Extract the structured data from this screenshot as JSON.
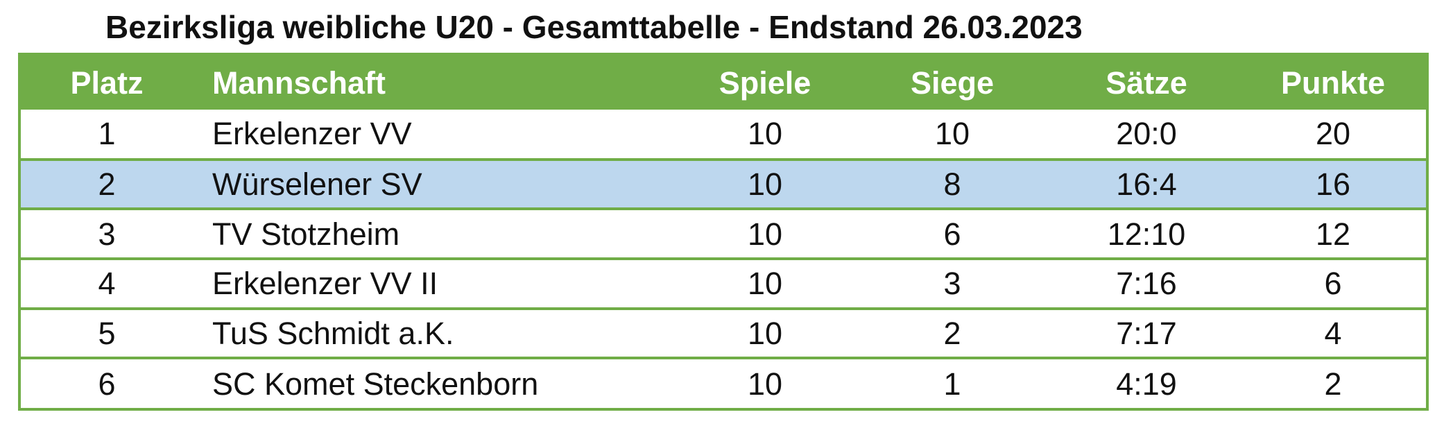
{
  "title": "Bezirksliga weibliche U20 - Gesamttabelle - Endstand 26.03.2023",
  "colors": {
    "header_green": "#70ad47",
    "highlight_blue": "#bdd7ee"
  },
  "headers": {
    "platz": "Platz",
    "mannschaft": "Mannschaft",
    "dash": "-",
    "spiele": "Spiele",
    "siege": "Siege",
    "saetze": "Sätze",
    "punkte": "Punkte"
  },
  "rows": [
    {
      "platz": "1",
      "mannschaft": "Erkelenzer VV",
      "spiele": "10",
      "siege": "10",
      "saetze": "20:0",
      "punkte": "20"
    },
    {
      "platz": "2",
      "mannschaft": "Würselener SV",
      "spiele": "10",
      "siege": "8",
      "saetze": "16:4",
      "punkte": "16"
    },
    {
      "platz": "3",
      "mannschaft": "TV Stotzheim",
      "spiele": "10",
      "siege": "6",
      "saetze": "12:10",
      "punkte": "12"
    },
    {
      "platz": "4",
      "mannschaft": "Erkelenzer VV II",
      "spiele": "10",
      "siege": "3",
      "saetze": "7:16",
      "punkte": "6"
    },
    {
      "platz": "5",
      "mannschaft": "TuS Schmidt a.K.",
      "spiele": "10",
      "siege": "2",
      "saetze": "7:17",
      "punkte": "4"
    },
    {
      "platz": "6",
      "mannschaft": "SC Komet Steckenborn",
      "spiele": "10",
      "siege": "1",
      "saetze": "4:19",
      "punkte": "2"
    }
  ]
}
